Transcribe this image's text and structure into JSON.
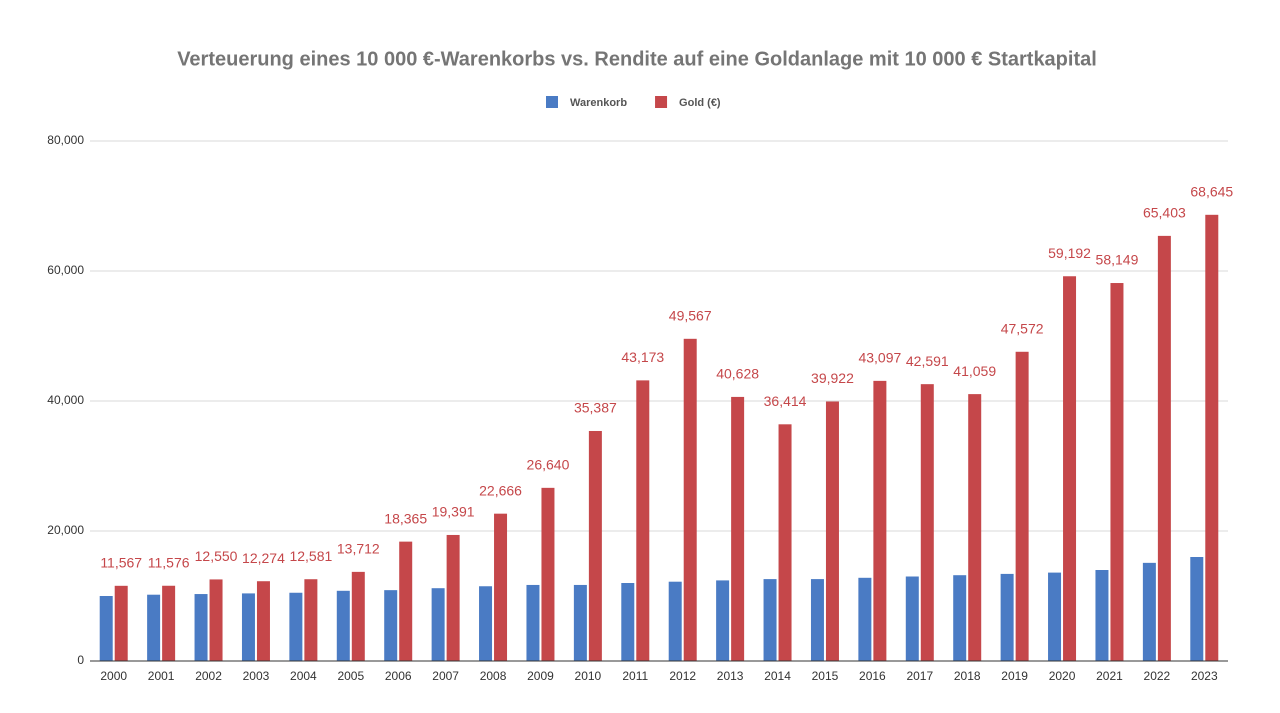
{
  "chart_data": {
    "type": "bar",
    "title": "Verteuerung eines  10 000 €-Warenkorbs vs. Rendite auf eine Goldanlage mit 10 000 € Startkapital",
    "categories": [
      "2000",
      "2001",
      "2002",
      "2003",
      "2004",
      "2005",
      "2006",
      "2007",
      "2008",
      "2009",
      "2010",
      "2011",
      "2012",
      "2013",
      "2014",
      "2015",
      "2016",
      "2017",
      "2018",
      "2019",
      "2020",
      "2021",
      "2022",
      "2023"
    ],
    "series": [
      {
        "name": "Warenkorb",
        "color": "#4a7bc4",
        "values": [
          10000,
          10200,
          10300,
          10400,
          10500,
          10800,
          10900,
          11200,
          11500,
          11700,
          11700,
          12000,
          12200,
          12400,
          12600,
          12600,
          12800,
          13000,
          13200,
          13400,
          13600,
          14000,
          15100,
          16000
        ]
      },
      {
        "name": "Gold (€)",
        "color": "#c5474a",
        "values": [
          11567,
          11576,
          12550,
          12274,
          12581,
          13712,
          18365,
          19391,
          22666,
          26640,
          35387,
          43173,
          49567,
          40628,
          36414,
          39922,
          43097,
          42591,
          41059,
          47572,
          59192,
          58149,
          65403,
          68645
        ],
        "value_labels": [
          "11,567",
          "11,576",
          "12,550",
          "12,274",
          "12,581",
          "13,712",
          "18,365",
          "19,391",
          "22,666",
          "26,640",
          "35,387",
          "43,173",
          "49,567",
          "40,628",
          "36,414",
          "39,922",
          "43,097",
          "42,591",
          "41,059",
          "47,572",
          "59,192",
          "58,149",
          "65,403",
          "68,645"
        ]
      }
    ],
    "ylim": [
      0,
      80000
    ],
    "yticks": [
      0,
      {
        "value": 20000,
        "label": "20,000"
      },
      {
        "value": 40000,
        "label": "40,000"
      },
      {
        "value": 60000,
        "label": "60,000"
      },
      {
        "value": 80000,
        "label": "80,000"
      }
    ],
    "grid": true,
    "legend": "top"
  }
}
